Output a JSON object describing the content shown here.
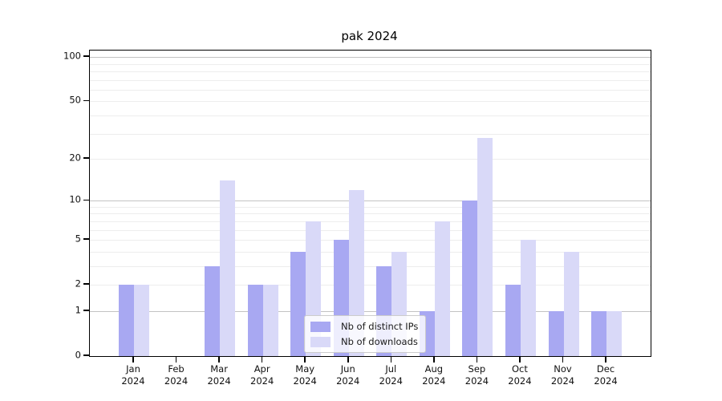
{
  "chart_data": {
    "type": "bar",
    "title": "pak 2024",
    "categories": [
      "Jan 2024",
      "Feb 2024",
      "Mar 2024",
      "Apr 2024",
      "May 2024",
      "Jun 2024",
      "Jul 2024",
      "Aug 2024",
      "Sep 2024",
      "Oct 2024",
      "Nov 2024",
      "Dec 2024"
    ],
    "series": [
      {
        "name": "Nb of distinct IPs",
        "color": "#a8a8f2",
        "values": [
          2,
          0,
          3,
          2,
          4,
          5,
          3,
          1,
          10,
          2,
          1,
          1
        ]
      },
      {
        "name": "Nb of downloads",
        "color": "#d9d9f8",
        "values": [
          2,
          0,
          14,
          2,
          7,
          12,
          4,
          7,
          28,
          5,
          4,
          1
        ]
      }
    ],
    "xlabel": "",
    "ylabel": "",
    "yscale": "log1p",
    "ylim": [
      0,
      110
    ],
    "yticks": [
      0,
      1,
      2,
      5,
      10,
      20,
      50,
      100
    ],
    "minor_gridlines": [
      2,
      3,
      4,
      5,
      6,
      7,
      8,
      9,
      20,
      30,
      40,
      50,
      60,
      70,
      80,
      90
    ],
    "major_gridlines": [
      1,
      10,
      100
    ],
    "grid": true,
    "legend_position": "inside-bottom-center"
  }
}
